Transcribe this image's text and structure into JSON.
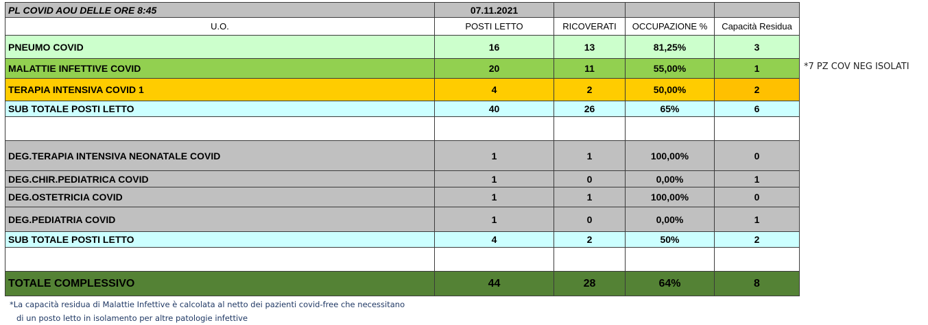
{
  "header": {
    "title": "PL COVID AOU DELLE ORE 8:45",
    "date": "07.11.2021"
  },
  "columns": [
    "U.O.",
    "POSTI LETTO",
    "RICOVERATI",
    "OCCUPAZIONE %",
    "Capacità Residua"
  ],
  "rows": [
    {
      "name": "PNEUMO COVID",
      "posti": "16",
      "ricoverati": "13",
      "occupazione": "81,25%",
      "capacita": "3",
      "color": "#ccffcc"
    },
    {
      "name": "MALATTIE INFETTIVE COVID",
      "posti": "20",
      "ricoverati": "11",
      "occupazione": "55,00%",
      "capacita": "1",
      "color": "#92d050"
    },
    {
      "name": "TERAPIA INTENSIVA COVID 1",
      "posti": "4",
      "ricoverati": "2",
      "occupazione": "50,00%",
      "capacita": "2",
      "color": "#ffcc00",
      "capacita_color": "#ffc000"
    },
    {
      "name": "SUB TOTALE POSTI LETTO",
      "posti": "40",
      "ricoverati": "26",
      "occupazione": "65%",
      "capacita": "6",
      "color": "#ccffff"
    },
    {
      "name": "DEG.TERAPIA INTENSIVA NEONATALE COVID",
      "posti": "1",
      "ricoverati": "1",
      "occupazione": "100,00%",
      "capacita": "0",
      "color": "#c0c0c0"
    },
    {
      "name": "DEG.CHIR.PEDIATRICA COVID",
      "posti": "1",
      "ricoverati": "0",
      "occupazione": "0,00%",
      "capacita": "1",
      "color": "#c0c0c0"
    },
    {
      "name": "DEG.OSTETRICIA COVID",
      "posti": "1",
      "ricoverati": "1",
      "occupazione": "100,00%",
      "capacita": "0",
      "color": "#c0c0c0"
    },
    {
      "name": "DEG.PEDIATRIA COVID",
      "posti": "1",
      "ricoverati": "0",
      "occupazione": "0,00%",
      "capacita": "1",
      "color": "#c0c0c0"
    },
    {
      "name": "SUB TOTALE POSTI LETTO",
      "posti": "4",
      "ricoverati": "2",
      "occupazione": "50%",
      "capacita": "2",
      "color": "#ccffff"
    },
    {
      "name": "TOTALE  COMPLESSIVO",
      "posti": "44",
      "ricoverati": "28",
      "occupazione": "64%",
      "capacita": "8",
      "color": "#548235"
    }
  ],
  "side_note": "*7 PZ COV NEG ISOLATI",
  "footnote": [
    "*La capacità residua di Malattie Infettive è calcolata al netto dei pazienti covid-free che necessitano",
    "di un posto letto in isolamento per altre patologie infettive"
  ]
}
